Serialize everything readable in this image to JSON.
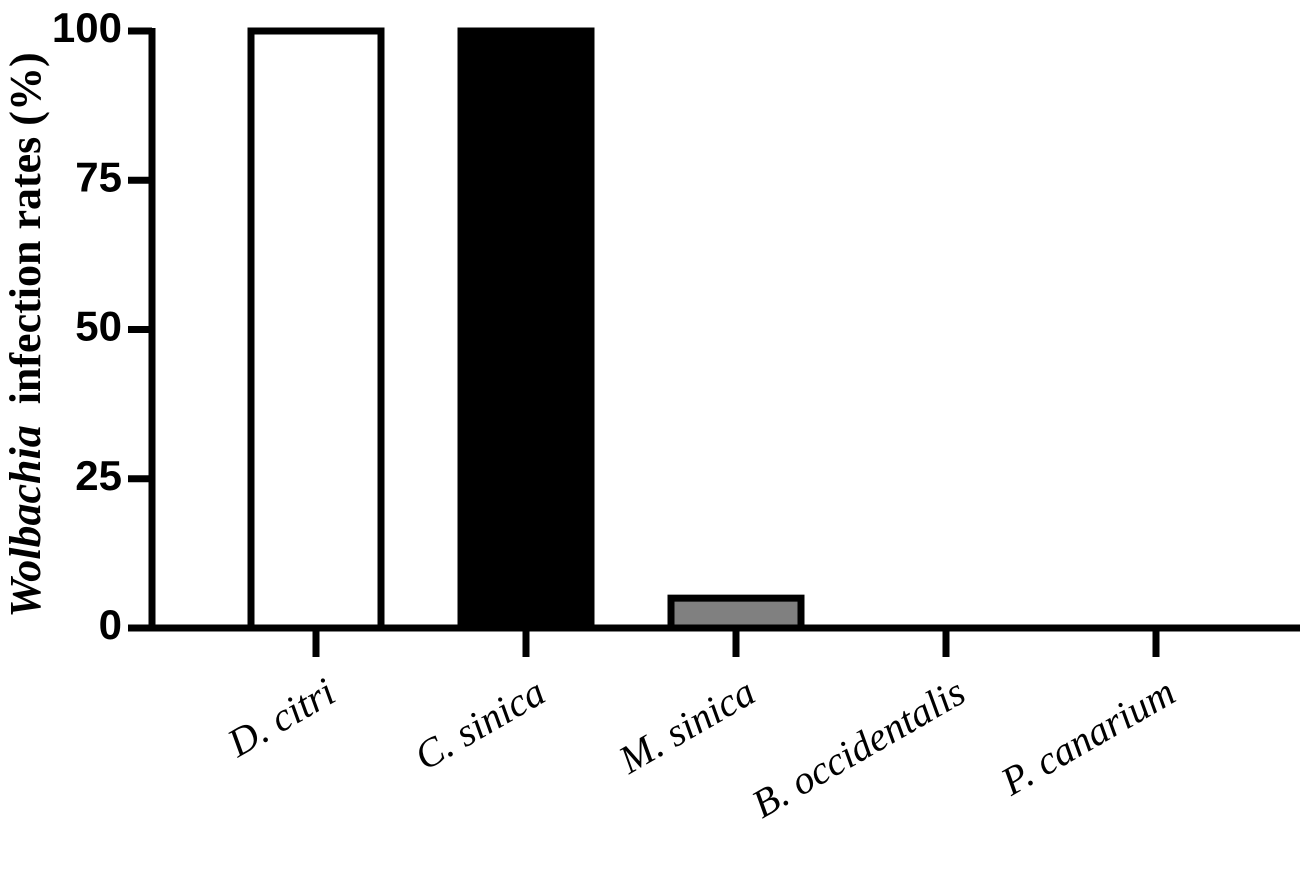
{
  "chart_data": {
    "type": "bar",
    "ylabel": [
      {
        "text": "Wolbachia",
        "italic": true
      },
      {
        "text": "infection rates (%)",
        "italic": false
      }
    ],
    "categories": [
      "D. citri",
      "C. sinica",
      "M. sinica",
      "B. occidentalis",
      "P. canarium"
    ],
    "values": [
      100,
      100,
      5,
      0,
      0
    ],
    "colors": [
      "#ffffff",
      "#000000",
      "#808080",
      "#ffffff",
      "#ffffff"
    ],
    "ylim": [
      0,
      100
    ],
    "yticks": [
      0,
      25,
      50,
      75,
      100
    ],
    "grid": false
  }
}
